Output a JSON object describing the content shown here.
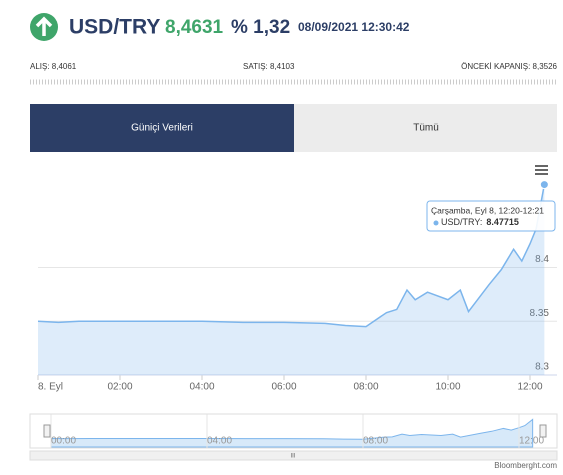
{
  "header": {
    "symbol": "USD/TRY",
    "price": "8,4631",
    "change": "% 1,32",
    "datetime": "08/09/2021 12:30:42"
  },
  "quotes": {
    "bid": "ALIŞ: 8,4061",
    "ask": "SATIŞ: 8,4103",
    "prev_close": "ÖNCEKİ KAPANIŞ: 8,3526"
  },
  "tabs": [
    "Güniçi Verileri",
    "Tümü"
  ],
  "chart_data": {
    "type": "line",
    "x": [
      0,
      0.5,
      1,
      2,
      3,
      4,
      5,
      6,
      7,
      7.5,
      8,
      8.5,
      8.75,
      9,
      9.2,
      9.5,
      10,
      10.3,
      10.5,
      11,
      11.3,
      11.6,
      11.8,
      12,
      12.15,
      12.35
    ],
    "series": [
      {
        "name": "USD/TRY",
        "color": "#7cb5ec",
        "values": [
          8.35,
          8.349,
          8.35,
          8.35,
          8.35,
          8.35,
          8.349,
          8.349,
          8.348,
          8.346,
          8.345,
          8.358,
          8.361,
          8.379,
          8.37,
          8.377,
          8.37,
          8.379,
          8.359,
          8.384,
          8.398,
          8.417,
          8.406,
          8.422,
          8.436,
          8.47715
        ]
      }
    ],
    "xlim": [
      0,
      12.66
    ],
    "xticks": [
      {
        "value": 0,
        "label": "8. Eyl"
      },
      {
        "value": 2,
        "label": "02:00"
      },
      {
        "value": 4,
        "label": "04:00"
      },
      {
        "value": 6,
        "label": "06:00"
      },
      {
        "value": 8,
        "label": "08:00"
      },
      {
        "value": 10,
        "label": "10:00"
      },
      {
        "value": 12,
        "label": "12:00"
      }
    ],
    "ylim": [
      8.3,
      8.5
    ],
    "yticks": [
      8.3,
      8.35,
      8.4
    ],
    "grid": true,
    "navigator_ticks": [
      {
        "value": 0,
        "label": "00:00"
      },
      {
        "value": 4,
        "label": "04:00"
      },
      {
        "value": 8,
        "label": "08:00"
      },
      {
        "value": 12,
        "label": "12:00"
      }
    ],
    "tooltip": {
      "title": "Çarşamba, Eyl 8, 12:20-12:21",
      "label": "USD/TRY:"
    }
  },
  "credit": "Bloomberght.com"
}
